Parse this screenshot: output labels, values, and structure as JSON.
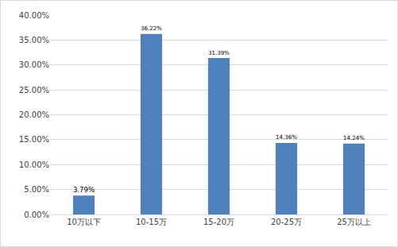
{
  "chart_data": {
    "type": "bar",
    "categories": [
      "10万以下",
      "10-15万",
      "15-20万",
      "20-25万",
      "25万以上"
    ],
    "values": [
      3.79,
      36.22,
      31.39,
      14.36,
      14.24
    ],
    "value_labels": [
      "3.79%",
      "36.22%",
      "31.39%",
      "14.36%",
      "14.24%"
    ],
    "data_labels": true,
    "color": "#4f81bd",
    "ylim": [
      0,
      40
    ],
    "yticks": [
      {
        "value": 0,
        "label": "0.00%"
      },
      {
        "value": 5,
        "label": "5.00%"
      },
      {
        "value": 10,
        "label": "10.00%"
      },
      {
        "value": 15,
        "label": "15.00%"
      },
      {
        "value": 20,
        "label": "20.00%"
      },
      {
        "value": 25,
        "label": "25.00%"
      },
      {
        "value": 30,
        "label": "30.00%"
      },
      {
        "value": 35,
        "label": "35.00%"
      },
      {
        "value": 40,
        "label": "40.00%"
      }
    ],
    "grid": true
  }
}
